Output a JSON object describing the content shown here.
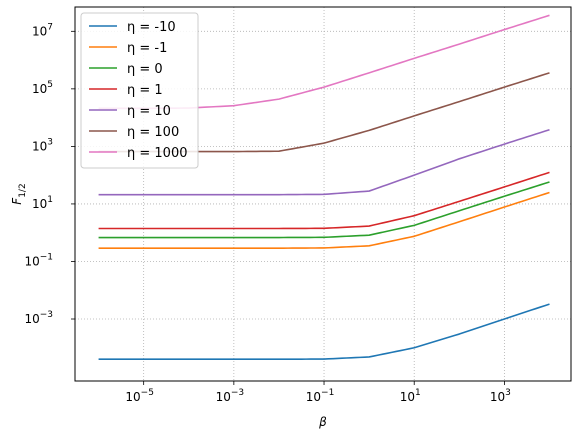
{
  "chart_data": {
    "type": "line",
    "title": "",
    "xlabel": "β",
    "ylabel": "F",
    "ylabel_subscript": "1/2",
    "xscale": "log",
    "yscale": "log",
    "xlim": [
      3e-07,
      30000
    ],
    "ylim": [
      7e-06,
      70000000
    ],
    "grid": true,
    "legend_position": "upper-left",
    "x_ticks": [
      {
        "value": 1e-05,
        "base": "10",
        "exp": "−5"
      },
      {
        "value": 0.001,
        "base": "10",
        "exp": "−3"
      },
      {
        "value": 0.1,
        "base": "10",
        "exp": "−1"
      },
      {
        "value": 10,
        "base": "10",
        "exp": "1"
      },
      {
        "value": 1000,
        "base": "10",
        "exp": "3"
      }
    ],
    "y_ticks": [
      {
        "value": 0.001,
        "base": "10",
        "exp": "−3"
      },
      {
        "value": 0.1,
        "base": "10",
        "exp": "−1"
      },
      {
        "value": 10,
        "base": "10",
        "exp": "1"
      },
      {
        "value": 1000,
        "base": "10",
        "exp": "3"
      },
      {
        "value": 100000,
        "base": "10",
        "exp": "5"
      },
      {
        "value": 10000000,
        "base": "10",
        "exp": "7"
      }
    ],
    "x": [
      1e-06,
      1e-05,
      0.0001,
      0.001,
      0.01,
      0.1,
      1,
      10,
      100,
      1000,
      10000
    ],
    "series": [
      {
        "name": "η = -10",
        "color": "#1f77b4",
        "values": [
          4e-05,
          4e-05,
          4e-05,
          4e-05,
          4e-05,
          4.05e-05,
          4.8e-05,
          0.0001,
          0.0003,
          0.001,
          0.0033
        ]
      },
      {
        "name": "η = -1",
        "color": "#ff7f0e",
        "values": [
          0.29,
          0.29,
          0.29,
          0.29,
          0.29,
          0.295,
          0.35,
          0.75,
          2.4,
          7.8,
          25
        ]
      },
      {
        "name": "η = 0",
        "color": "#2ca02c",
        "values": [
          0.68,
          0.68,
          0.68,
          0.68,
          0.68,
          0.69,
          0.82,
          1.8,
          5.8,
          18.5,
          58
        ]
      },
      {
        "name": "η = 1",
        "color": "#d62728",
        "values": [
          1.4,
          1.4,
          1.4,
          1.4,
          1.4,
          1.42,
          1.7,
          3.9,
          12.3,
          39,
          125
        ]
      },
      {
        "name": "η = 10",
        "color": "#9467bd",
        "values": [
          21,
          21,
          21,
          21,
          21,
          21.5,
          28,
          100,
          370,
          1200,
          3800
        ]
      },
      {
        "name": "η = 100",
        "color": "#8c564b",
        "values": [
          660,
          660,
          660,
          660,
          680,
          1300,
          3600,
          11500,
          36000,
          115000,
          360000
        ]
      },
      {
        "name": "η = 1000",
        "color": "#e377c2",
        "values": [
          21000,
          21000,
          21500,
          26000,
          44000,
          115000,
          360000,
          1150000,
          3600000,
          11500000,
          36000000
        ]
      }
    ]
  }
}
